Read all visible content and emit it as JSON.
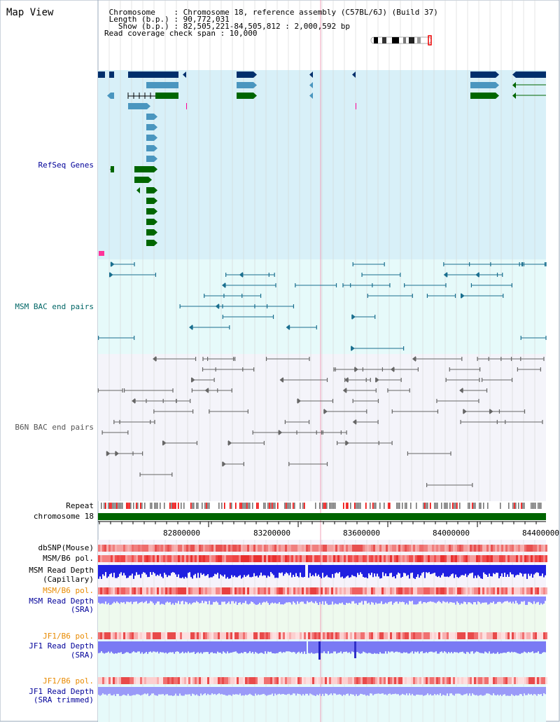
{
  "page": {
    "title": "Map View"
  },
  "header": {
    "chromosome_line": " Chromosome    : Chromosome 18, reference assembly (C57BL/6J) (Build 37)",
    "length_line": " Length (b.p.) : 90,772,031",
    "show_line": "   Show (b.p.) : 82,505,221-84,505,812 : 2,000,592 bp",
    "coverage_line": "Read coverage check span : 10,000"
  },
  "tracks": {
    "refseq": {
      "label": "RefSeq Genes",
      "color": "#000099"
    },
    "msm_bac": {
      "label": "MSM BAC end pairs",
      "color": "#006666"
    },
    "b6n_bac": {
      "label": "B6N BAC end pairs",
      "color": "#555555"
    },
    "repeat": {
      "label": "Repeat"
    },
    "chromosome": {
      "label": "chromosome 18"
    },
    "dbsnp": {
      "label": "dbSNP(Mouse)"
    },
    "msm_pol": {
      "label": "MSM/B6 pol."
    },
    "msm_depth_cap": {
      "label_line1": "MSM Read Depth",
      "label_line2": "(Capillary)"
    },
    "msm_pol_sra": {
      "label": "MSM/B6 pol."
    },
    "msm_depth_sra": {
      "label_line1": "MSM Read Depth",
      "label_line2": "(SRA)"
    },
    "jf1_pol": {
      "label": "JF1/B6 pol."
    },
    "jf1_depth": {
      "label_line1": "JF1 Read Depth",
      "label_line2": "(SRA)"
    },
    "jf1_pol_trim": {
      "label": "JF1/B6 pol."
    },
    "jf1_depth_trim": {
      "label_line1": "JF1 Read Depth",
      "label_line2": "(SRA trimmed)"
    }
  },
  "axis": {
    "ticks": [
      "82800000",
      "83200000",
      "83600000",
      "84000000",
      "84400000"
    ]
  },
  "colors": {
    "refseq_bg": "#d8f0f8",
    "msm_bg": "#e6fafa",
    "b6n_bg": "#f4f4fa",
    "dark_gene": "#002f6c",
    "mid_gene": "#4a96bf",
    "green_gene": "#006600",
    "msm_line": "#1a6f8f",
    "b6n_line": "#666666",
    "chromosome": "#006400",
    "orange_label": "#e88a00",
    "blue_label": "#000099"
  }
}
